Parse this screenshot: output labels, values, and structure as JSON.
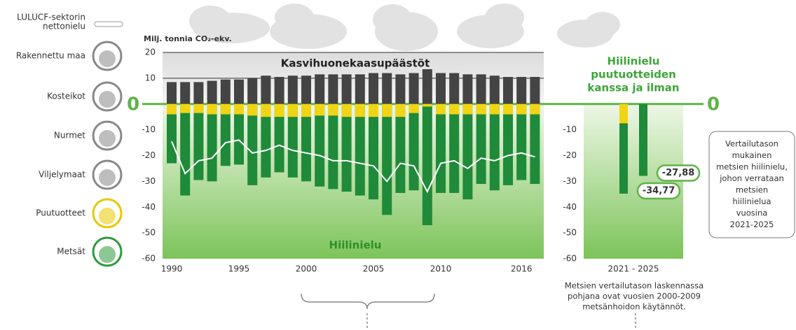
{
  "legend": [
    [
      "LULUCF-sektorin",
      "nettonielu"
    ],
    [
      "Rakennettu maa"
    ],
    [
      "Kosteikot"
    ],
    [
      "Nurmet"
    ],
    [
      "Viljelymaat"
    ],
    [
      "Puutuotteet"
    ],
    [
      "Metsät"
    ]
  ],
  "chart_data": [
    {
      "type": "bar",
      "y_label": "Milj. tonnia CO₂-ekv.",
      "annotations": [
        "Kasvihuonekaasupäästöt",
        "Hiilinielu"
      ],
      "categories": [
        "1990",
        null,
        null,
        null,
        null,
        "1995",
        null,
        null,
        null,
        null,
        "2000",
        null,
        null,
        null,
        null,
        "2005",
        null,
        null,
        null,
        null,
        "2010",
        null,
        null,
        null,
        null,
        null,
        "2016",
        null
      ],
      "series": [
        {
          "type": "bar",
          "color": "#444444",
          "values": [
            8.5,
            8.5,
            8.5,
            9,
            9.5,
            9.5,
            10,
            11,
            10.5,
            11,
            11,
            11.5,
            11.5,
            11.5,
            11.5,
            12,
            12,
            11.5,
            12,
            13.5,
            12,
            12,
            11.5,
            11.5,
            11,
            10.5,
            10.5,
            10.5
          ]
        },
        {
          "type": "bar",
          "color": "#1f8a3a",
          "values": [
            -23,
            -35.5,
            -29.5,
            -30,
            -24,
            -23.5,
            -31.5,
            -28.5,
            -26.5,
            -28.5,
            -30,
            -32,
            -33,
            -34,
            -35.5,
            -37,
            -43,
            -34.5,
            -33.5,
            -47,
            -34.5,
            -34.5,
            -37,
            -31,
            -33.5,
            -31.5,
            -29.5,
            -31
          ]
        },
        {
          "type": "bar",
          "color": "#f0d515",
          "values": [
            -4,
            -3.5,
            -3.5,
            -4,
            -4,
            -4,
            -4.5,
            -5,
            -5,
            -5,
            -5,
            -4.5,
            -4.5,
            -5,
            -5,
            -5,
            -5,
            -5,
            -3.5,
            -1,
            -4,
            -4,
            -4,
            -4,
            -4,
            -4,
            -4,
            -4
          ]
        },
        {
          "type": "line",
          "color": "#ffffff",
          "values": [
            -14.5,
            -27,
            -22,
            -21,
            -15,
            -14,
            -19,
            -18,
            -16,
            -18,
            -19,
            -20,
            -22,
            -22,
            -23,
            -24,
            -30,
            -23,
            -24,
            -34,
            -23,
            -22,
            -25,
            -21,
            -22,
            -20,
            -19,
            -20.5
          ]
        }
      ],
      "ylim": [
        -60,
        20
      ],
      "yticks": [
        20,
        10,
        0,
        -10,
        -20,
        -30,
        -40,
        -50,
        -60
      ],
      "grid": true
    },
    {
      "type": "bar",
      "title": [
        "Hiilinielu",
        "puutuotteiden",
        "kanssa ja ilman"
      ],
      "categories": [
        "2021 - 2025"
      ],
      "series": [
        {
          "type": "bar",
          "color": "#1f8a3a",
          "values": [
            -34.77
          ],
          "value_labels": [
            "-34,77"
          ]
        },
        {
          "type": "bar",
          "color": "#1f8a3a",
          "values": [
            -27.88
          ],
          "value_labels": [
            "-27,88"
          ]
        },
        {
          "type": "bar",
          "color": "#f0d515",
          "values": [
            -7.5
          ]
        }
      ],
      "ylim": [
        -60,
        0
      ],
      "yticks": [
        0,
        -10,
        -20,
        -30,
        -40,
        -50,
        -60
      ],
      "note": [
        "Metsien vertailutason laskennassa",
        "pohjana ovat vuosien 2000-2009",
        "metsänhoidon käytännöt."
      ],
      "box": [
        "Vertailutason",
        "mukainen",
        "metsien hiilinielu,",
        "johon verrataan",
        "metsien",
        "hiilinielua",
        "vuosina",
        "2021-2025"
      ]
    }
  ]
}
